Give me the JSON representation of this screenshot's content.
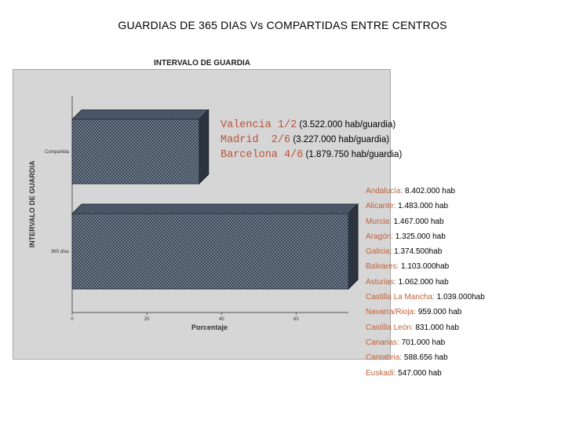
{
  "slide": {
    "title": "GUARDIAS DE 365 DIAS Vs COMPARTIDAS ENTRE CENTROS"
  },
  "colors": {
    "bar": "#4a5665",
    "bar_dark": "#2c3440",
    "annotation": "#b8543a",
    "region_name": "#c0603a",
    "frame": "#d6d6d6"
  },
  "chart_data": {
    "type": "bar",
    "orientation": "horizontal",
    "title": "INTERVALO DE GUARDIA",
    "xlabel": "Porcentaje",
    "ylabel": "INTERVALO DE GUARDIA",
    "categories": [
      "Compartida",
      "365 días"
    ],
    "values": [
      34,
      74
    ],
    "xlim": [
      0,
      74
    ],
    "xticks": [
      0,
      20,
      40,
      60
    ],
    "three_d": true
  },
  "annotations": [
    {
      "city": "Valencia 1/2",
      "value": "(3.522.000 hab/guardia)"
    },
    {
      "city": "Madrid  2/6",
      "value": "(3.227.000 hab/guardia)"
    },
    {
      "city": "Barcelona 4/6",
      "value": "(1.879.750 hab/guardia)"
    }
  ],
  "regions": [
    {
      "name": "Andalucía:",
      "value": "8.402.000 hab"
    },
    {
      "name": "Alicante:",
      "value": "1.483.000 hab"
    },
    {
      "name": "Murcia:",
      "value": "1.467.000 hab"
    },
    {
      "name": "Aragón:",
      "value": "1.325.000 hab"
    },
    {
      "name": "Galicia:",
      "value": "1.374.500hab"
    },
    {
      "name": "Baleares:",
      "value": "1.103.000hab"
    },
    {
      "name": "Asturias:",
      "value": "1.062.000 hab"
    },
    {
      "name": "Castilla La Mancha:",
      "value": "1.039.000hab"
    },
    {
      "name": "Navarra/Rioja:",
      "value": "959.000 hab"
    },
    {
      "name": "Castilla León:",
      "value": "831.000 hab"
    },
    {
      "name": "Canarias:",
      "value": "701.000 hab"
    },
    {
      "name": "Cantabria:",
      "value": "588.656 hab"
    },
    {
      "name": "Euskadi:",
      "value": "547.000 hab"
    }
  ]
}
